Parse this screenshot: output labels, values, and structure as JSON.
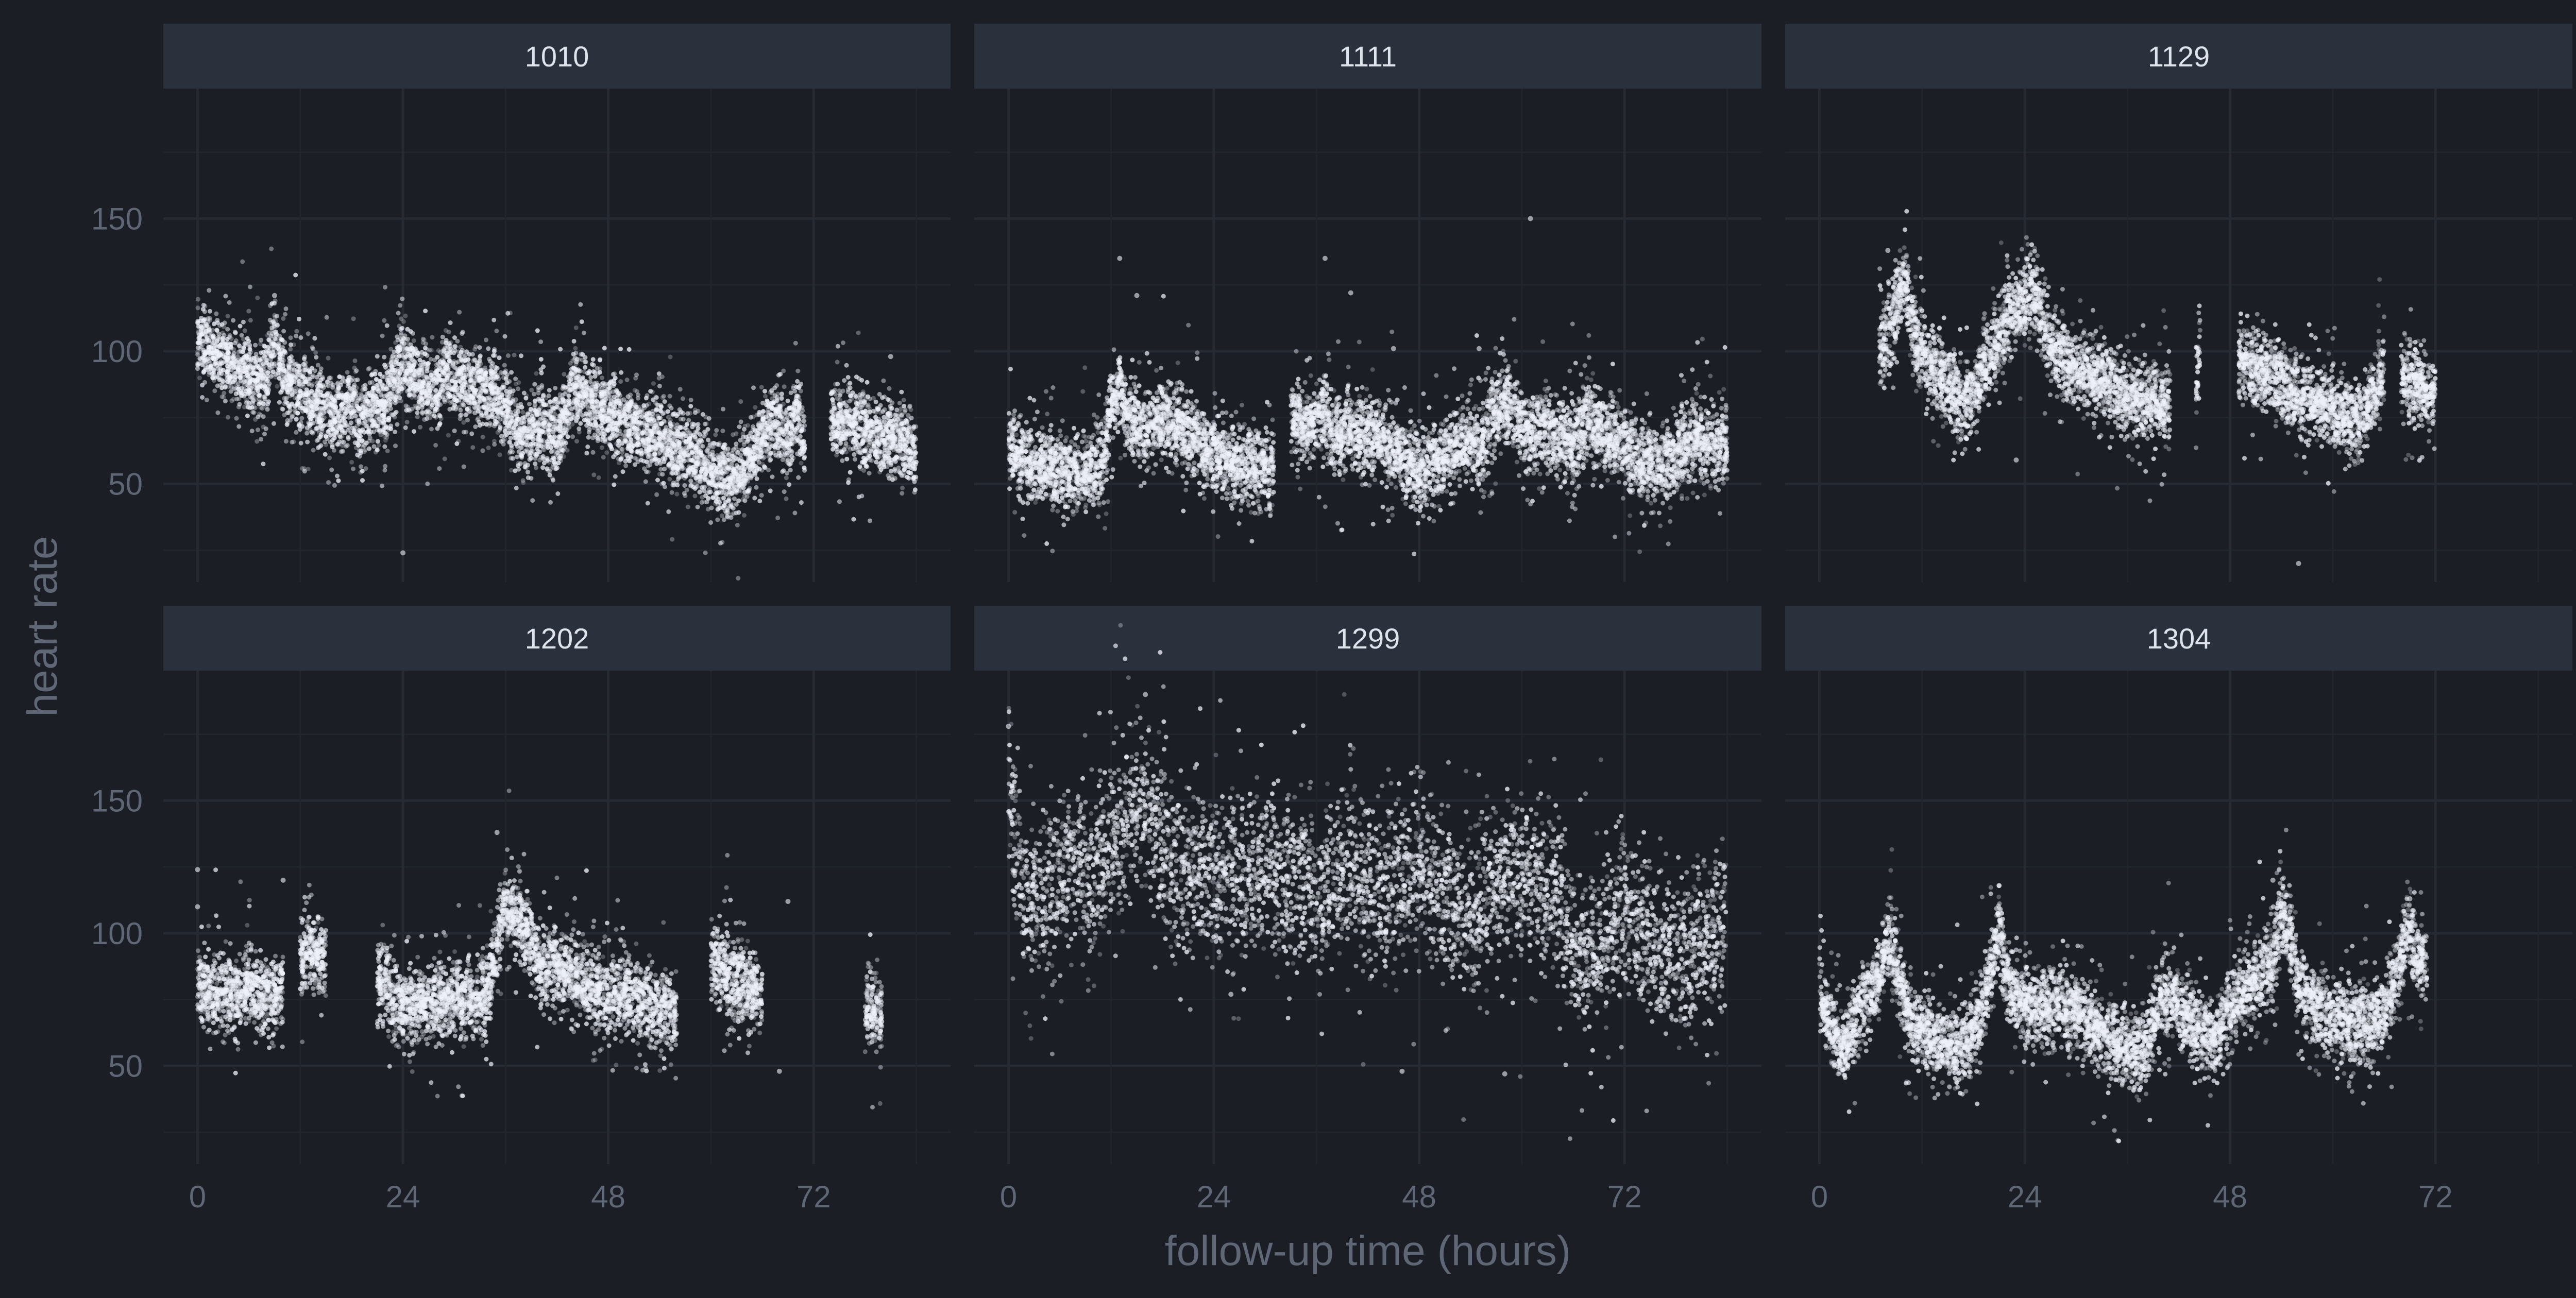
{
  "chart_data": {
    "type": "scatter",
    "layout": "facet 2 rows x 3 columns",
    "xlabel": "follow-up time (hours)",
    "ylabel": "heart rate",
    "x_ticks": [
      0,
      24,
      48,
      72
    ],
    "y_ticks": [
      50,
      100,
      150
    ],
    "xlim": [
      -4,
      88
    ],
    "ylim": [
      13,
      199
    ],
    "grid": true,
    "colors": {
      "background": "#1b1e24",
      "strip": "#2b303d",
      "strip_text": "#dfe3ec",
      "grid_major": "#262a33",
      "grid_minor": "#21252c",
      "points": "#eef1fa",
      "axis_text": "#5f6675"
    },
    "panels": [
      {
        "id": "1010",
        "x_end": 84,
        "segments": [
          [
            0,
            105
          ],
          [
            2,
            100
          ],
          [
            4,
            94
          ],
          [
            6,
            91
          ],
          [
            8,
            88
          ],
          [
            9,
            105
          ],
          [
            10,
            92
          ],
          [
            12,
            84
          ],
          [
            14,
            78
          ],
          [
            16,
            75
          ],
          [
            18,
            82
          ],
          [
            19,
            72
          ],
          [
            20,
            78
          ],
          [
            22,
            80
          ],
          [
            23,
            90
          ],
          [
            24,
            97
          ],
          [
            26,
            88
          ],
          [
            28,
            85
          ],
          [
            29,
            95
          ],
          [
            30,
            89
          ],
          [
            32,
            86
          ],
          [
            34,
            85
          ],
          [
            36,
            80
          ],
          [
            37,
            72
          ],
          [
            38,
            66
          ],
          [
            40,
            73
          ],
          [
            42,
            68
          ],
          [
            44,
            86
          ],
          [
            46,
            82
          ],
          [
            48,
            77
          ],
          [
            50,
            72
          ],
          [
            52,
            70
          ],
          [
            54,
            68
          ],
          [
            56,
            62
          ],
          [
            58,
            60
          ],
          [
            60,
            55
          ],
          [
            62,
            52
          ],
          [
            64,
            56
          ],
          [
            66,
            68
          ],
          [
            68,
            76
          ],
          [
            69,
            65
          ],
          [
            70,
            80
          ],
          [
            71,
            62
          ],
          [
            72,
            null
          ],
          [
            74,
            74
          ],
          [
            76,
            73
          ],
          [
            78,
            70
          ],
          [
            80,
            68
          ],
          [
            82,
            66
          ],
          [
            84,
            64
          ]
        ],
        "outliers": [
          [
            24,
            24
          ],
          [
            9,
            121
          ],
          [
            81,
            98
          ]
        ]
      },
      {
        "id": "1111",
        "x_end": 84,
        "segments": [
          [
            0,
            66
          ],
          [
            2,
            58
          ],
          [
            4,
            57
          ],
          [
            6,
            55
          ],
          [
            8,
            56
          ],
          [
            10,
            55
          ],
          [
            11,
            57
          ],
          [
            12,
            80
          ],
          [
            13,
            88
          ],
          [
            14,
            75
          ],
          [
            16,
            71
          ],
          [
            18,
            76
          ],
          [
            20,
            72
          ],
          [
            22,
            67
          ],
          [
            24,
            62
          ],
          [
            26,
            58
          ],
          [
            28,
            57
          ],
          [
            30,
            56
          ],
          [
            31,
            57
          ],
          [
            32,
            null
          ],
          [
            33,
            75
          ],
          [
            35,
            72
          ],
          [
            37,
            78
          ],
          [
            38,
            68
          ],
          [
            40,
            70
          ],
          [
            42,
            68
          ],
          [
            44,
            66
          ],
          [
            46,
            60
          ],
          [
            48,
            56
          ],
          [
            50,
            58
          ],
          [
            52,
            64
          ],
          [
            54,
            67
          ],
          [
            55,
            62
          ],
          [
            56,
            72
          ],
          [
            58,
            80
          ],
          [
            60,
            72
          ],
          [
            61,
            68
          ],
          [
            62,
            72
          ],
          [
            64,
            68
          ],
          [
            66,
            66
          ],
          [
            68,
            75
          ],
          [
            70,
            68
          ],
          [
            72,
            65
          ],
          [
            74,
            58
          ],
          [
            76,
            56
          ],
          [
            78,
            60
          ],
          [
            80,
            68
          ],
          [
            82,
            64
          ],
          [
            84,
            66
          ]
        ],
        "outliers": [
          [
            13,
            135
          ],
          [
            15,
            121
          ],
          [
            37,
            135
          ],
          [
            40,
            122
          ],
          [
            45,
            101
          ],
          [
            61,
            150
          ],
          [
            55,
            101
          ]
        ]
      },
      {
        "id": "1129",
        "x_end": 72,
        "x_start": 7,
        "segments": [
          [
            7,
            100
          ],
          [
            8,
            105
          ],
          [
            9,
            118
          ],
          [
            10,
            128
          ],
          [
            11,
            106
          ],
          [
            13,
            95
          ],
          [
            15,
            88
          ],
          [
            17,
            78
          ],
          [
            18,
            86
          ],
          [
            20,
            98
          ],
          [
            22,
            113
          ],
          [
            24,
            118
          ],
          [
            25,
            122
          ],
          [
            27,
            103
          ],
          [
            29,
            96
          ],
          [
            31,
            92
          ],
          [
            33,
            90
          ],
          [
            35,
            86
          ],
          [
            37,
            81
          ],
          [
            39,
            82
          ],
          [
            41,
            78
          ],
          [
            42,
            null
          ],
          [
            44,
            84
          ],
          [
            44.5,
            102
          ],
          [
            45,
            null
          ],
          [
            49,
            96
          ],
          [
            51,
            93
          ],
          [
            53,
            92
          ],
          [
            55,
            86
          ],
          [
            57,
            82
          ],
          [
            59,
            80
          ],
          [
            61,
            77
          ],
          [
            63,
            74
          ],
          [
            65,
            86
          ],
          [
            66,
            92
          ],
          [
            67,
            null
          ],
          [
            68,
            90
          ],
          [
            70,
            87
          ],
          [
            72,
            84
          ]
        ],
        "outliers": [
          [
            23,
            59
          ],
          [
            56,
            20
          ],
          [
            8,
            138
          ]
        ]
      },
      {
        "id": "1202",
        "x_end": 81,
        "segments": [
          [
            0,
            80
          ],
          [
            2,
            79
          ],
          [
            4,
            78
          ],
          [
            6,
            80
          ],
          [
            8,
            76
          ],
          [
            10,
            80
          ],
          [
            10.5,
            null
          ],
          [
            12,
            88
          ],
          [
            13,
            96
          ],
          [
            14,
            93
          ],
          [
            15,
            90
          ],
          [
            15.5,
            null
          ],
          [
            21,
            82
          ],
          [
            22,
            80
          ],
          [
            24,
            72
          ],
          [
            26,
            74
          ],
          [
            28,
            75
          ],
          [
            30,
            76
          ],
          [
            32,
            74
          ],
          [
            34,
            78
          ],
          [
            35,
            95
          ],
          [
            36,
            112
          ],
          [
            37,
            107
          ],
          [
            38,
            104
          ],
          [
            39,
            97
          ],
          [
            40,
            88
          ],
          [
            42,
            88
          ],
          [
            44,
            84
          ],
          [
            46,
            80
          ],
          [
            48,
            76
          ],
          [
            50,
            76
          ],
          [
            52,
            74
          ],
          [
            54,
            72
          ],
          [
            56,
            70
          ],
          [
            57,
            null
          ],
          [
            60,
            90
          ],
          [
            62,
            85
          ],
          [
            64,
            80
          ],
          [
            66,
            76
          ],
          [
            67,
            null
          ],
          [
            68,
            68
          ],
          [
            69,
            null
          ],
          [
            72,
            70
          ],
          [
            73,
            null
          ],
          [
            75,
            76
          ],
          [
            76,
            null
          ],
          [
            78,
            72
          ],
          [
            80,
            70
          ]
        ],
        "outliers": [
          [
            0,
            124
          ],
          [
            0,
            110
          ],
          [
            10,
            120
          ],
          [
            69,
            112
          ],
          [
            68,
            48
          ],
          [
            35,
            138
          ]
        ]
      },
      {
        "id": "1299",
        "x_end": 84,
        "segments": [
          [
            0,
            160
          ],
          [
            2,
            108
          ],
          [
            4,
            114
          ],
          [
            6,
            118
          ],
          [
            8,
            126
          ],
          [
            10,
            123
          ],
          [
            12,
            133
          ],
          [
            14,
            143
          ],
          [
            16,
            150
          ],
          [
            18,
            132
          ],
          [
            20,
            120
          ],
          [
            22,
            128
          ],
          [
            24,
            120
          ],
          [
            26,
            124
          ],
          [
            28,
            121
          ],
          [
            30,
            126
          ],
          [
            32,
            118
          ],
          [
            34,
            122
          ],
          [
            36,
            113
          ],
          [
            38,
            121
          ],
          [
            40,
            124
          ],
          [
            42,
            118
          ],
          [
            44,
            112
          ],
          [
            46,
            120
          ],
          [
            48,
            125
          ],
          [
            50,
            118
          ],
          [
            52,
            112
          ],
          [
            54,
            108
          ],
          [
            56,
            114
          ],
          [
            58,
            123
          ],
          [
            60,
            122
          ],
          [
            62,
            120
          ],
          [
            64,
            116
          ],
          [
            66,
            95
          ],
          [
            68,
            92
          ],
          [
            70,
            95
          ],
          [
            72,
            110
          ],
          [
            74,
            102
          ],
          [
            76,
            94
          ],
          [
            78,
            90
          ],
          [
            80,
            96
          ],
          [
            82,
            100
          ],
          [
            84,
            106
          ]
        ],
        "outliers": [
          [
            0,
            178
          ],
          [
            16,
            190
          ],
          [
            46,
            48
          ],
          [
            58,
            47
          ],
          [
            26,
            77
          ]
        ]
      },
      {
        "id": "1304",
        "x_end": 71,
        "segments": [
          [
            0,
            80
          ],
          [
            1,
            66
          ],
          [
            3,
            58
          ],
          [
            5,
            74
          ],
          [
            7,
            84
          ],
          [
            8,
            98
          ],
          [
            9,
            88
          ],
          [
            10,
            72
          ],
          [
            12,
            63
          ],
          [
            14,
            60
          ],
          [
            16,
            58
          ],
          [
            18,
            62
          ],
          [
            20,
            84
          ],
          [
            21,
            104
          ],
          [
            22,
            80
          ],
          [
            24,
            74
          ],
          [
            26,
            72
          ],
          [
            28,
            73
          ],
          [
            30,
            71
          ],
          [
            32,
            65
          ],
          [
            34,
            60
          ],
          [
            36,
            56
          ],
          [
            38,
            56
          ],
          [
            40,
            76
          ],
          [
            42,
            74
          ],
          [
            44,
            64
          ],
          [
            46,
            60
          ],
          [
            48,
            72
          ],
          [
            50,
            80
          ],
          [
            52,
            86
          ],
          [
            53,
            88
          ],
          [
            54,
            108
          ],
          [
            55,
            98
          ],
          [
            56,
            80
          ],
          [
            58,
            72
          ],
          [
            60,
            68
          ],
          [
            62,
            67
          ],
          [
            64,
            66
          ],
          [
            66,
            70
          ],
          [
            68,
            90
          ],
          [
            69,
            104
          ],
          [
            70,
            90
          ],
          [
            71,
            86
          ]
        ],
        "outliers": [
          [
            21,
            118
          ],
          [
            53,
            120
          ],
          [
            69,
            113
          ]
        ]
      }
    ]
  }
}
